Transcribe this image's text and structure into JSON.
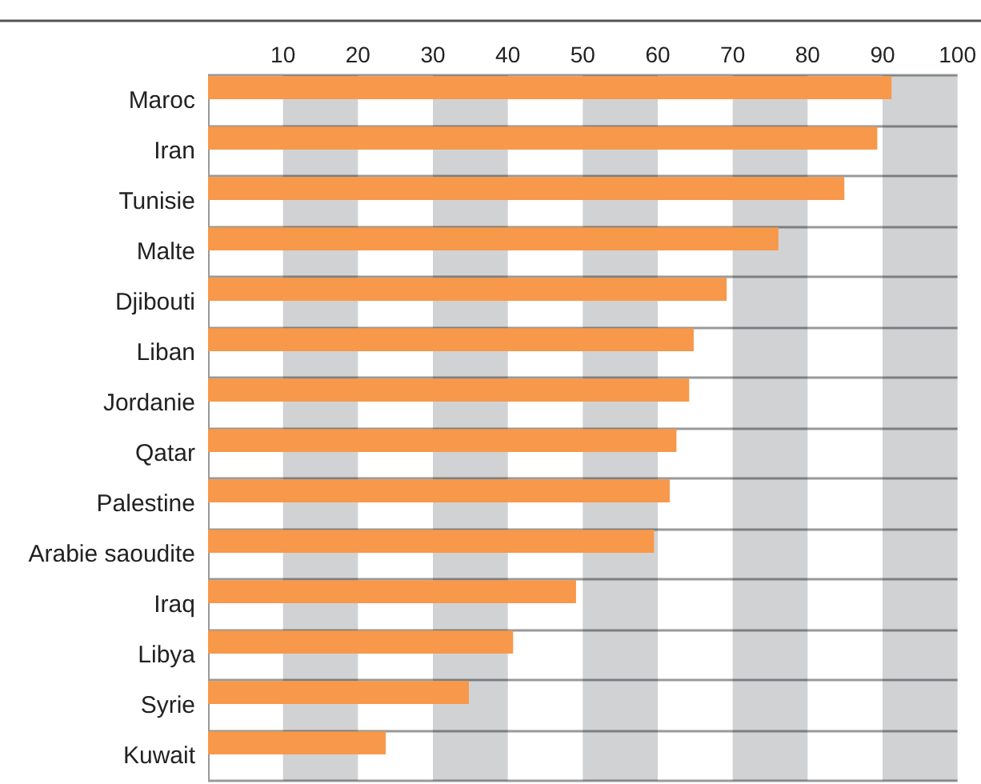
{
  "chart_data": {
    "type": "bar",
    "orientation": "horizontal",
    "categories": [
      "Maroc",
      "Iran",
      "Tunisie",
      "Malte",
      "Djibouti",
      "Liban",
      "Jordanie",
      "Qatar",
      "Palestine",
      "Arabie saoudite",
      "Iraq",
      "Libya",
      "Syrie",
      "Kuwait"
    ],
    "values": [
      91.2,
      89.3,
      84.9,
      76.1,
      69.2,
      64.8,
      64.2,
      62.5,
      61.6,
      59.5,
      49.1,
      40.7,
      34.8,
      23.7
    ],
    "color": "#f7984a",
    "xlim": [
      0,
      100
    ],
    "xticks": [
      10,
      20,
      30,
      40,
      50,
      60,
      70,
      80,
      90,
      100
    ],
    "grid": "y",
    "bands": [
      {
        "axis": "x",
        "from": 10,
        "to": 20,
        "color": "#d1d2d4"
      },
      {
        "axis": "x",
        "from": 30,
        "to": 40,
        "color": "#d1d2d4"
      },
      {
        "axis": "x",
        "from": 50,
        "to": 60,
        "color": "#d1d2d4"
      },
      {
        "axis": "x",
        "from": 70,
        "to": 80,
        "color": "#d1d2d4"
      },
      {
        "axis": "x",
        "from": 90,
        "to": 100,
        "color": "#d1d2d4"
      }
    ]
  }
}
